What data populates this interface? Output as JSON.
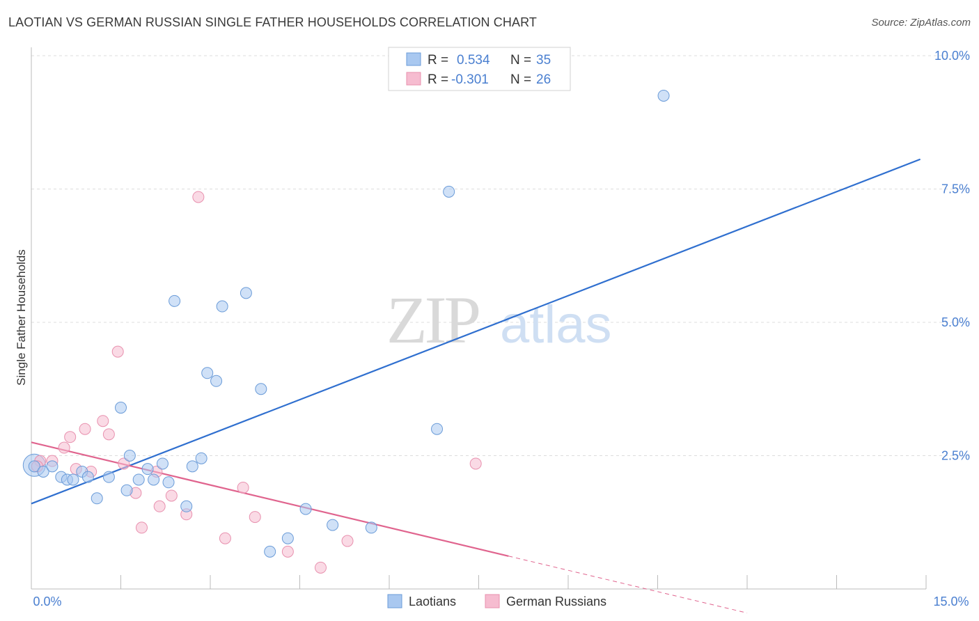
{
  "title": "LAOTIAN VS GERMAN RUSSIAN SINGLE FATHER HOUSEHOLDS CORRELATION CHART",
  "source": "Source: ZipAtlas.com",
  "watermark": {
    "zip": "ZIP",
    "atlas": "atlas"
  },
  "colors": {
    "laotian_fill": "#a9c8f0",
    "laotian_stroke": "#6a9bd8",
    "laotian_line": "#2f6fcf",
    "german_fill": "#f6bcd0",
    "german_stroke": "#e890ae",
    "german_line": "#e0648e",
    "axis_text": "#4a7fd0",
    "grid": "#dcdcdc"
  },
  "legend": {
    "rows": [
      {
        "r_label": "R =",
        "r_value": "0.534",
        "n_label": "N =",
        "n_value": "35"
      },
      {
        "r_label": "R =",
        "r_value": "-0.301",
        "n_label": "N =",
        "n_value": "26"
      }
    ]
  },
  "chart_data": {
    "type": "scatter",
    "title": "LAOTIAN VS GERMAN RUSSIAN SINGLE FATHER HOUSEHOLDS CORRELATION CHART",
    "ylabel": "Single Father Households",
    "xlabel": "",
    "xlim": [
      0,
      15
    ],
    "ylim": [
      0,
      10
    ],
    "x_tick_labels": [
      "0.0%",
      "15.0%"
    ],
    "y_ticks": [
      2.5,
      5.0,
      7.5,
      10.0
    ],
    "y_tick_labels": [
      "2.5%",
      "5.0%",
      "7.5%",
      "10.0%"
    ],
    "series": [
      {
        "name": "Laotians",
        "r": 0.534,
        "n": 35,
        "points": [
          [
            0.05,
            2.3
          ],
          [
            0.2,
            2.2
          ],
          [
            0.35,
            2.3
          ],
          [
            0.5,
            2.1
          ],
          [
            0.6,
            2.05
          ],
          [
            0.7,
            2.05
          ],
          [
            0.85,
            2.2
          ],
          [
            0.95,
            2.1
          ],
          [
            1.1,
            1.7
          ],
          [
            1.3,
            2.1
          ],
          [
            1.5,
            3.4
          ],
          [
            1.6,
            1.85
          ],
          [
            1.65,
            2.5
          ],
          [
            1.8,
            2.05
          ],
          [
            1.95,
            2.25
          ],
          [
            2.05,
            2.05
          ],
          [
            2.2,
            2.35
          ],
          [
            2.3,
            2.0
          ],
          [
            2.4,
            5.4
          ],
          [
            2.6,
            1.55
          ],
          [
            2.7,
            2.3
          ],
          [
            2.85,
            2.45
          ],
          [
            2.95,
            4.05
          ],
          [
            3.1,
            3.9
          ],
          [
            3.2,
            5.3
          ],
          [
            3.6,
            5.55
          ],
          [
            3.85,
            3.75
          ],
          [
            4.0,
            0.7
          ],
          [
            4.3,
            0.95
          ],
          [
            4.6,
            1.5
          ],
          [
            5.05,
            1.2
          ],
          [
            5.7,
            1.15
          ],
          [
            6.8,
            3.0
          ],
          [
            7.0,
            7.45
          ],
          [
            10.6,
            9.25
          ]
        ],
        "trend": {
          "x0": 0,
          "y0": 1.6,
          "x1": 15,
          "y1": 8.1,
          "dashed_from": null
        }
      },
      {
        "name": "German Russians",
        "r": -0.301,
        "n": 26,
        "points": [
          [
            0.15,
            2.4
          ],
          [
            0.35,
            2.4
          ],
          [
            0.55,
            2.65
          ],
          [
            0.65,
            2.85
          ],
          [
            0.75,
            2.25
          ],
          [
            0.9,
            3.0
          ],
          [
            1.0,
            2.2
          ],
          [
            1.2,
            3.15
          ],
          [
            1.3,
            2.9
          ],
          [
            1.45,
            4.45
          ],
          [
            1.55,
            2.35
          ],
          [
            1.75,
            1.8
          ],
          [
            1.85,
            1.15
          ],
          [
            2.1,
            2.2
          ],
          [
            2.15,
            1.55
          ],
          [
            2.35,
            1.75
          ],
          [
            2.6,
            1.4
          ],
          [
            2.8,
            7.35
          ],
          [
            3.25,
            0.95
          ],
          [
            3.55,
            1.9
          ],
          [
            3.75,
            1.35
          ],
          [
            4.3,
            0.7
          ],
          [
            4.85,
            0.4
          ],
          [
            5.3,
            0.9
          ],
          [
            7.45,
            2.35
          ],
          [
            0.1,
            2.3
          ]
        ],
        "trend": {
          "x0": 0,
          "y0": 2.75,
          "x1": 15,
          "y1": -1.25,
          "dashed_from": 8
        }
      }
    ],
    "legend_position": "top-center"
  }
}
